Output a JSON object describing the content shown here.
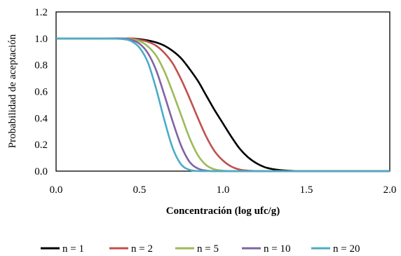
{
  "chart_data": {
    "type": "line",
    "title": "",
    "xlabel": "Concentración (log ufc/g)",
    "ylabel": "Probabilidad de aceptación",
    "xlim": [
      0.0,
      2.0
    ],
    "ylim": [
      0.0,
      1.2
    ],
    "xticks": [
      "0.0",
      "0.5",
      "1.0",
      "1.5",
      "2.0"
    ],
    "yticks": [
      "0.0",
      "0.2",
      "0.4",
      "0.6",
      "0.8",
      "1.0",
      "1.2"
    ],
    "grid": false,
    "legend_position": "bottom",
    "x": [
      0.0,
      0.1,
      0.2,
      0.3,
      0.4,
      0.45,
      0.5,
      0.55,
      0.6,
      0.65,
      0.7,
      0.75,
      0.8,
      0.85,
      0.9,
      0.95,
      1.0,
      1.05,
      1.1,
      1.15,
      1.2,
      1.25,
      1.3,
      1.35,
      1.4,
      1.45,
      1.5,
      1.6,
      1.8,
      2.0
    ],
    "series": [
      {
        "name": "n = 1",
        "color": "#000000",
        "values": [
          1.0,
          1.0,
          1.0,
          1.0,
          1.0,
          1.0,
          0.995,
          0.985,
          0.97,
          0.945,
          0.905,
          0.85,
          0.77,
          0.68,
          0.57,
          0.46,
          0.36,
          0.26,
          0.17,
          0.105,
          0.06,
          0.03,
          0.015,
          0.007,
          0.003,
          0.0,
          0.0,
          0.0,
          0.0,
          0.0
        ]
      },
      {
        "name": "n = 2",
        "color": "#c0504d",
        "values": [
          1.0,
          1.0,
          1.0,
          1.0,
          1.0,
          1.0,
          0.99,
          0.975,
          0.945,
          0.89,
          0.81,
          0.69,
          0.55,
          0.4,
          0.26,
          0.15,
          0.08,
          0.035,
          0.012,
          0.004,
          0.001,
          0.0,
          0.0,
          0.0,
          0.0,
          0.0,
          0.0,
          0.0,
          0.0,
          0.0
        ]
      },
      {
        "name": "n = 5",
        "color": "#9bbb59",
        "values": [
          1.0,
          1.0,
          1.0,
          1.0,
          1.0,
          0.995,
          0.98,
          0.94,
          0.87,
          0.75,
          0.59,
          0.42,
          0.25,
          0.12,
          0.045,
          0.013,
          0.003,
          0.0,
          0.0,
          0.0,
          0.0,
          0.0,
          0.0,
          0.0,
          0.0,
          0.0,
          0.0,
          0.0,
          0.0,
          0.0
        ]
      },
      {
        "name": "n = 10",
        "color": "#8064a2",
        "values": [
          1.0,
          1.0,
          1.0,
          1.0,
          1.0,
          0.99,
          0.96,
          0.89,
          0.76,
          0.57,
          0.37,
          0.19,
          0.07,
          0.02,
          0.004,
          0.0,
          0.0,
          0.0,
          0.0,
          0.0,
          0.0,
          0.0,
          0.0,
          0.0,
          0.0,
          0.0,
          0.0,
          0.0,
          0.0,
          0.0
        ]
      },
      {
        "name": "n = 20",
        "color": "#4bacc6",
        "values": [
          1.0,
          1.0,
          1.0,
          1.0,
          0.995,
          0.98,
          0.93,
          0.82,
          0.62,
          0.38,
          0.17,
          0.05,
          0.01,
          0.001,
          0.0,
          0.0,
          0.0,
          0.0,
          0.0,
          0.0,
          0.0,
          0.0,
          0.0,
          0.0,
          0.0,
          0.0,
          0.0,
          0.0,
          0.0,
          0.0
        ]
      }
    ]
  }
}
